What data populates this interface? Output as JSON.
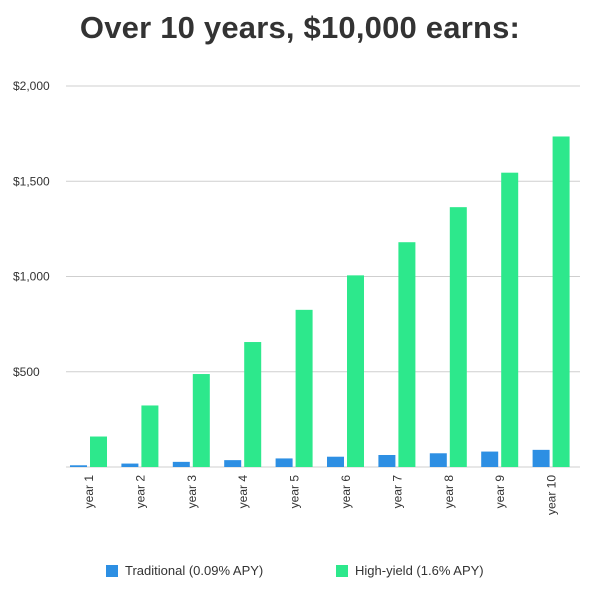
{
  "chart_data": {
    "type": "bar",
    "title": "Over 10 years, $10,000 earns:",
    "categories": [
      "year 1",
      "year 2",
      "year 3",
      "year 4",
      "year 5",
      "year 6",
      "year 7",
      "year 8",
      "year 9",
      "year 10"
    ],
    "series": [
      {
        "name": "Traditional (0.09% APY)",
        "color": "#2d8fe3",
        "values": [
          9,
          18,
          27,
          36,
          45,
          54,
          63,
          72,
          81,
          90
        ]
      },
      {
        "name": "High-yield (1.6% APY)",
        "color": "#2de88c",
        "values": [
          160,
          323,
          488,
          656,
          825,
          1006,
          1180,
          1364,
          1545,
          1735
        ]
      }
    ],
    "yticks": [
      "$500",
      "$1,000",
      "$1,500",
      "$2,000"
    ],
    "ytick_values": [
      500,
      1000,
      1500,
      2000
    ],
    "ylim": [
      0,
      2000
    ],
    "grid": true,
    "legend_position": "bottom"
  }
}
